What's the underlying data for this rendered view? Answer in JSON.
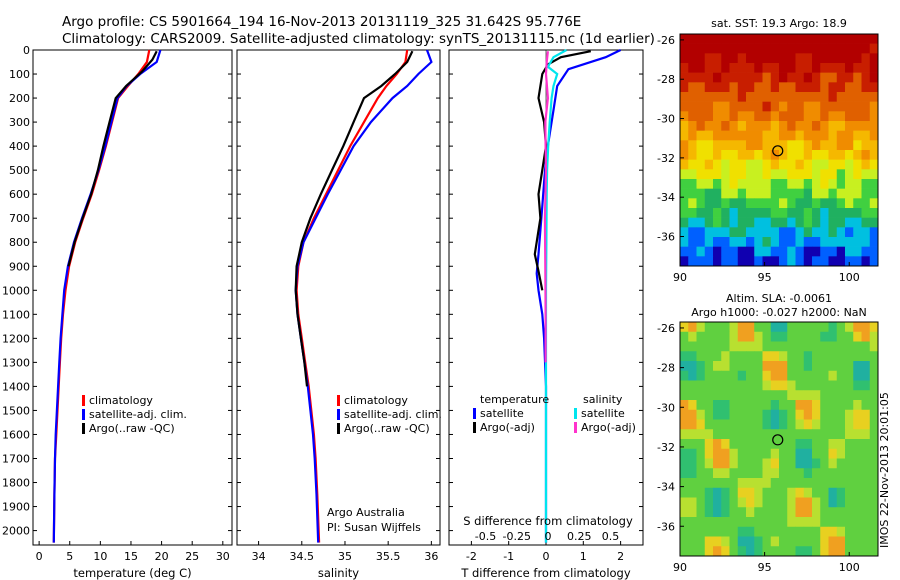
{
  "header": {
    "line1": "Argo profile: CS 5901664_194 16-Nov-2013 20131119_325 31.642S 95.776E",
    "line2": "Climatology: CARS2009. Satellite-adjusted climatology: synTS_20131115.nc (1d earlier)"
  },
  "side_stamp": "IMOS 22-Nov-2013 20:01:05",
  "colors": {
    "climatology": "#ff0000",
    "satellite": "#0000ff",
    "argo": "#000000",
    "satellite_salinity": "#00e5ee",
    "argo_salinity": "#ff33cc"
  },
  "chart_data": [
    {
      "type": "line",
      "id": "temperature",
      "xlabel": "temperature (deg C)",
      "ylabel": "",
      "xlim": [
        -1,
        31.5
      ],
      "ylim": [
        2060,
        0
      ],
      "xticks": [
        0,
        5,
        10,
        15,
        20,
        25,
        30
      ],
      "yticks": [
        0,
        100,
        200,
        300,
        400,
        500,
        600,
        700,
        800,
        900,
        1000,
        1100,
        1200,
        1300,
        1400,
        1500,
        1600,
        1700,
        1800,
        1900,
        2000
      ],
      "legend": [
        "climatology",
        "satellite-adj. clim.",
        "Argo(..raw -QC)"
      ],
      "series": [
        {
          "name": "climatology",
          "color": "#ff0000",
          "x": [
            18.0,
            17.6,
            16.2,
            14.5,
            12.9,
            11.9,
            10.9,
            9.8,
            8.6,
            7.2,
            5.9,
            4.9,
            4.3,
            3.9,
            3.6,
            3.4,
            3.2,
            3.0,
            2.8,
            2.6,
            2.5,
            2.4
          ],
          "y": [
            0,
            50,
            100,
            150,
            200,
            300,
            400,
            500,
            600,
            700,
            800,
            900,
            1000,
            1100,
            1200,
            1300,
            1400,
            1500,
            1600,
            1700,
            1850,
            2050
          ]
        },
        {
          "name": "satellite-adj. clim.",
          "color": "#0000ff",
          "x": [
            19.8,
            19.2,
            16.5,
            14.3,
            12.8,
            11.8,
            10.8,
            9.7,
            8.4,
            7.0,
            5.7,
            4.7,
            4.1,
            3.8,
            3.5,
            3.3,
            3.1,
            2.9,
            2.7,
            2.6,
            2.5,
            2.4
          ],
          "y": [
            0,
            50,
            100,
            150,
            200,
            300,
            400,
            500,
            600,
            700,
            800,
            900,
            1000,
            1100,
            1200,
            1300,
            1400,
            1500,
            1600,
            1700,
            1850,
            2050
          ]
        },
        {
          "name": "Argo(..raw -QC)",
          "color": "#000000",
          "x": [
            19.2,
            18.5,
            16.8,
            14.2,
            12.5,
            11.5,
            10.5,
            9.6,
            8.5,
            7.1,
            5.8,
            4.8
          ],
          "y": [
            5,
            40,
            90,
            150,
            200,
            300,
            400,
            500,
            600,
            700,
            800,
            900
          ]
        }
      ]
    },
    {
      "type": "line",
      "id": "salinity",
      "xlabel": "salinity",
      "ylabel": "",
      "xlim": [
        33.75,
        36.1
      ],
      "ylim": [
        2060,
        0
      ],
      "xticks": [
        34,
        34.5,
        35,
        35.5,
        36
      ],
      "legend": [
        "climatology",
        "satellite-adj. clim.",
        "Argo(..raw -QC)"
      ],
      "annotations": [
        "Argo Australia",
        "PI: Susan Wijffels"
      ],
      "series": [
        {
          "name": "climatology",
          "color": "#ff0000",
          "x": [
            35.72,
            35.7,
            35.6,
            35.48,
            35.38,
            35.22,
            35.06,
            34.92,
            34.78,
            34.64,
            34.52,
            34.46,
            34.44,
            34.46,
            34.5,
            34.54,
            34.58,
            34.61,
            34.64,
            34.66,
            34.68,
            34.7
          ],
          "y": [
            0,
            50,
            100,
            150,
            200,
            300,
            400,
            500,
            600,
            700,
            800,
            900,
            1000,
            1100,
            1200,
            1300,
            1400,
            1500,
            1600,
            1700,
            1850,
            2050
          ]
        },
        {
          "name": "satellite-adj. clim.",
          "color": "#0000ff",
          "x": [
            35.95,
            36.0,
            35.85,
            35.72,
            35.55,
            35.3,
            35.1,
            34.95,
            34.8,
            34.66,
            34.52,
            34.45,
            34.43,
            34.45,
            34.49,
            34.53,
            34.57,
            34.6,
            34.63,
            34.65,
            34.67,
            34.69
          ],
          "y": [
            0,
            50,
            100,
            150,
            200,
            300,
            400,
            500,
            600,
            700,
            800,
            900,
            1000,
            1100,
            1200,
            1300,
            1400,
            1500,
            1600,
            1700,
            1850,
            2050
          ]
        },
        {
          "name": "Argo(..raw -QC)",
          "color": "#000000",
          "x": [
            35.78,
            35.72,
            35.58,
            35.42,
            35.22,
            35.1,
            34.98,
            34.85,
            34.72,
            34.6,
            34.5,
            34.44,
            34.43,
            34.45,
            34.49,
            34.53,
            34.56
          ],
          "y": [
            5,
            50,
            100,
            150,
            200,
            300,
            400,
            500,
            600,
            700,
            800,
            900,
            1000,
            1100,
            1200,
            1300,
            1400
          ]
        }
      ]
    },
    {
      "type": "line",
      "id": "difference",
      "xlabel": "T difference from climatology",
      "xlabel_top": "S difference from climatology",
      "xlim": [
        -2.6,
        2.6
      ],
      "ylim": [
        2060,
        0
      ],
      "xticks": [
        -2,
        -1,
        0,
        1,
        2
      ],
      "xticks_top": [
        -0.5,
        -0.25,
        0,
        0.25,
        0.5
      ],
      "legend_groups": [
        "temperature",
        "salinity"
      ],
      "legend": [
        "satellite",
        "Argo(-adj)",
        "satellite",
        "Argo(-adj)"
      ],
      "series": [
        {
          "name": "temperature satellite",
          "color": "#0000ff",
          "x": [
            2.0,
            1.6,
            0.6,
            0.3,
            0.2,
            0.1,
            0.0,
            -0.05,
            -0.1,
            -0.15,
            -0.2,
            -0.25,
            -0.2,
            -0.1,
            -0.05,
            0.0,
            0.0,
            0.0,
            0.0,
            0.0
          ],
          "y": [
            0,
            30,
            80,
            150,
            250,
            350,
            450,
            550,
            650,
            750,
            850,
            930,
            1000,
            1100,
            1200,
            1400,
            1600,
            1800,
            1950,
            2050
          ]
        },
        {
          "name": "temperature Argo(-adj)",
          "color": "#000000",
          "x": [
            1.2,
            0.4,
            0.05,
            -0.1,
            -0.2,
            -0.05,
            0.0,
            -0.1,
            -0.2,
            -0.15,
            -0.3,
            -0.2,
            -0.1
          ],
          "y": [
            5,
            30,
            60,
            100,
            200,
            300,
            400,
            500,
            600,
            700,
            850,
            920,
            1000
          ]
        },
        {
          "name": "salinity satellite",
          "color": "#00e5ee",
          "x": [
            0.55,
            0.2,
            0.05,
            0.3,
            0.2,
            0.15,
            0.1,
            0.06,
            0.03,
            0.02,
            0.01,
            0.0,
            0.0,
            0.0,
            0.0
          ],
          "y": [
            0,
            30,
            70,
            100,
            150,
            200,
            300,
            400,
            500,
            600,
            800,
            1000,
            1300,
            1700,
            2050
          ]
        },
        {
          "name": "salinity Argo(-adj)",
          "color": "#ff33cc",
          "x": [
            0.05,
            0.02,
            0.0,
            0.05,
            -0.02,
            -0.01,
            0.0,
            -0.03,
            -0.02,
            -0.01,
            -0.01
          ],
          "y": [
            5,
            50,
            100,
            200,
            300,
            400,
            500,
            700,
            900,
            1100,
            1300
          ]
        }
      ]
    },
    {
      "type": "heatmap",
      "id": "sst",
      "title": "sat. SST: 19.3 Argo: 18.9",
      "xlim": [
        90,
        101.7
      ],
      "ylim": [
        -37.5,
        -25.7
      ],
      "xticks": [
        90,
        95,
        100
      ],
      "yticks": [
        -26,
        -28,
        -30,
        -32,
        -34,
        -36
      ],
      "marker": {
        "lon": 95.776,
        "lat": -31.642
      }
    },
    {
      "type": "heatmap",
      "id": "sla",
      "title_lines": [
        "Altim. SLA: -0.0061",
        "Argo h1000: -0.027 h2000: NaN"
      ],
      "xlim": [
        90,
        101.7
      ],
      "ylim": [
        -37.5,
        -25.7
      ],
      "xticks": [
        90,
        95,
        100
      ],
      "yticks": [
        -26,
        -28,
        -30,
        -32,
        -34,
        -36
      ],
      "marker": {
        "lon": 95.776,
        "lat": -31.642
      }
    }
  ]
}
